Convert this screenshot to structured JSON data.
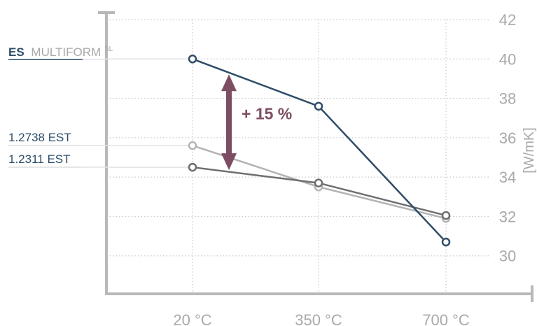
{
  "chart_data": {
    "type": "line",
    "categories": [
      "20 °C",
      "350 °C",
      "700 °C"
    ],
    "ylabel": "[W/mK]",
    "ylim": [
      28,
      42
    ],
    "yticks": [
      "30",
      "32",
      "34",
      "36",
      "38",
      "40",
      "42"
    ],
    "grid": "dotted",
    "series": [
      {
        "name_bold": "ES",
        "name": "MULTIFORM",
        "name_sup": "SL",
        "values": [
          40.0,
          37.6,
          30.7
        ],
        "color": "#2e4d68"
      },
      {
        "name": "1.2738 EST",
        "values": [
          35.6,
          33.5,
          31.9
        ],
        "color": "#b3b3b3"
      },
      {
        "name": "1.2311 EST",
        "values": [
          34.5,
          33.7,
          32.05
        ],
        "color": "#6e6e6e"
      }
    ],
    "annotation": {
      "text": "+ 15 %",
      "color": "#7d4e63",
      "from": 40.0,
      "to": 34.5
    }
  }
}
